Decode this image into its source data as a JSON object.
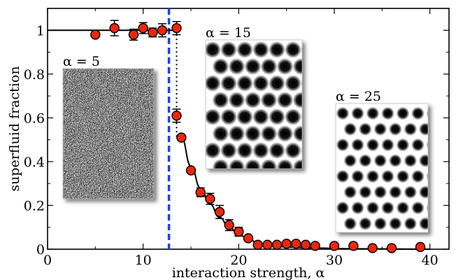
{
  "chart_data": {
    "type": "scatter",
    "xlabel": "interaction strength, α",
    "ylabel": "superfluid fraction",
    "xlim": [
      0,
      42
    ],
    "ylim": [
      0,
      1.1
    ],
    "x_ticks": [
      0,
      10,
      20,
      30,
      40
    ],
    "y_ticks": [
      0,
      0.2,
      0.4,
      0.6,
      0.8,
      1
    ],
    "x_tick_labels": [
      "0",
      "10",
      "20",
      "30",
      "40"
    ],
    "y_tick_labels": [
      "0",
      "0.2",
      "0.4",
      "0.6",
      "0.8",
      "1"
    ],
    "vertical_line_x": 12.7,
    "transition_x": 13.5,
    "series": [
      {
        "x": [
          5,
          7,
          9,
          10,
          11,
          12,
          13.5,
          13.5,
          14,
          15,
          16,
          17,
          18,
          19,
          20,
          21,
          22,
          23,
          24,
          25,
          26,
          27,
          28,
          30,
          32,
          34,
          36,
          39
        ],
        "y": [
          0.98,
          1.01,
          0.98,
          1.01,
          0.99,
          1.0,
          1.01,
          0.61,
          0.51,
          0.36,
          0.26,
          0.23,
          0.17,
          0.11,
          0.08,
          0.05,
          0.02,
          0.02,
          0.02,
          0.025,
          0.025,
          0.02,
          0.015,
          0.015,
          0.015,
          0.005,
          0.005,
          0.01
        ],
        "yerr": [
          0.0,
          0.035,
          0.025,
          0.025,
          0.02,
          0.03,
          0.03,
          0.03,
          0.0,
          0.0,
          0.02,
          0.025,
          0.03,
          0.025,
          0.02,
          0.0,
          0.0,
          0.0,
          0.0,
          0.0,
          0.0,
          0.0,
          0.0,
          0.0,
          0.0,
          0.0,
          0.0,
          0.0
        ],
        "color": "#e8280c"
      }
    ],
    "fit_curve": {
      "x": [
        0,
        13.5,
        14,
        15,
        16,
        17,
        18,
        19,
        20,
        21,
        22,
        23,
        25,
        28,
        32,
        36,
        40
      ],
      "y": [
        1.0,
        1.0,
        0.51,
        0.38,
        0.28,
        0.205,
        0.145,
        0.1,
        0.068,
        0.046,
        0.03,
        0.02,
        0.01,
        0.005,
        0.002,
        0.001,
        0.0
      ]
    },
    "insets": [
      {
        "label": "α = 5",
        "pattern": "disordered noise"
      },
      {
        "label": "α = 15",
        "pattern": "crystalline lattice, large droplets"
      },
      {
        "label": "α = 25",
        "pattern": "crystalline lattice, small droplets"
      }
    ],
    "colors": {
      "marker_fill": "#e8280c",
      "dashed_line": "#1f3ef5",
      "axis": "#000000"
    }
  }
}
